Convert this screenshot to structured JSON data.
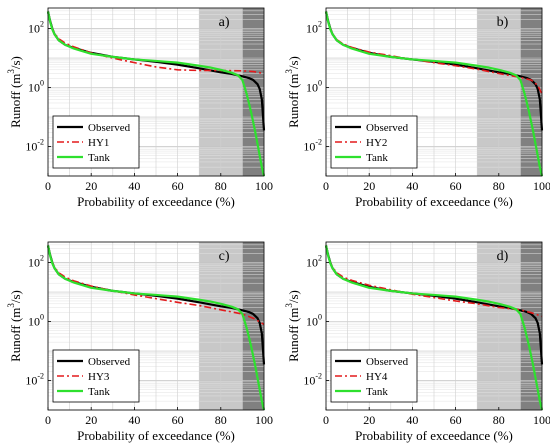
{
  "chart_data": [
    {
      "type": "line",
      "panel_label": "a)",
      "xlabel": "Probability of exceedance (%)",
      "ylabel": "Runoff (m3/s)",
      "ylabel_parts": {
        "pre": "Runoff (m",
        "sup": "3",
        "post": "/s)"
      },
      "xlim": [
        0,
        100
      ],
      "ylim": [
        0.001,
        500
      ],
      "yscale": "log",
      "xticks": [
        "0",
        "20",
        "40",
        "60",
        "80",
        "100"
      ],
      "yticks": [
        {
          "base": "10",
          "exp": "-2",
          "value": 0.01
        },
        {
          "base": "10",
          "exp": "0",
          "value": 1
        },
        {
          "base": "10",
          "exp": "2",
          "value": 100
        }
      ],
      "grid": true,
      "shaded_regions": [
        {
          "x": [
            70,
            90
          ],
          "color": "#c8c8c8"
        },
        {
          "x": [
            90,
            100
          ],
          "color": "#808080"
        }
      ],
      "legend_position": "bottom-left",
      "series": [
        {
          "name": "Observed",
          "color": "#000000",
          "dash": "solid",
          "x": [
            0,
            1,
            2,
            3,
            5,
            8,
            12,
            20,
            30,
            40,
            50,
            60,
            70,
            80,
            85,
            90,
            93,
            95,
            97,
            98,
            99,
            99.5,
            100
          ],
          "y": [
            380,
            180,
            100,
            65,
            40,
            28,
            22,
            15,
            11,
            9,
            7.5,
            6,
            4.5,
            3.3,
            2.9,
            2.4,
            2.1,
            1.8,
            1.3,
            0.9,
            0.4,
            0.12,
            0.035
          ]
        },
        {
          "name": "HY1",
          "color": "#e31a1c",
          "dash": "dashdot",
          "x": [
            0,
            1,
            2,
            3,
            5,
            8,
            12,
            20,
            30,
            40,
            50,
            60,
            70,
            80,
            90,
            95,
            100
          ],
          "y": [
            380,
            180,
            100,
            70,
            45,
            32,
            24,
            15,
            10,
            7,
            5,
            4,
            3.8,
            3.8,
            3.7,
            3.5,
            3.0
          ]
        },
        {
          "name": "Tank",
          "color": "#2ee02e",
          "dash": "solid",
          "x": [
            0,
            1,
            2,
            3,
            5,
            8,
            12,
            20,
            30,
            40,
            50,
            60,
            70,
            75,
            80,
            85,
            88,
            90,
            92,
            94,
            96,
            98,
            99,
            100
          ],
          "y": [
            380,
            170,
            95,
            65,
            40,
            28,
            21,
            14,
            11,
            9,
            8,
            7,
            5.5,
            4.8,
            4.0,
            3.2,
            2.6,
            1.8,
            0.6,
            0.15,
            0.03,
            0.005,
            0.002,
            0.001
          ]
        }
      ]
    },
    {
      "type": "line",
      "panel_label": "b)",
      "xlabel": "Probability of exceedance (%)",
      "ylabel": "Runoff (m3/s)",
      "ylabel_parts": {
        "pre": "Runoff (m",
        "sup": "3",
        "post": "/s)"
      },
      "xlim": [
        0,
        100
      ],
      "ylim": [
        0.001,
        500
      ],
      "yscale": "log",
      "xticks": [
        "0",
        "20",
        "40",
        "60",
        "80",
        "100"
      ],
      "yticks": [
        {
          "base": "10",
          "exp": "-2",
          "value": 0.01
        },
        {
          "base": "10",
          "exp": "0",
          "value": 1
        },
        {
          "base": "10",
          "exp": "2",
          "value": 100
        }
      ],
      "grid": true,
      "shaded_regions": [
        {
          "x": [
            70,
            90
          ],
          "color": "#c8c8c8"
        },
        {
          "x": [
            90,
            100
          ],
          "color": "#808080"
        }
      ],
      "legend_position": "bottom-left",
      "series": [
        {
          "name": "Observed",
          "color": "#000000",
          "dash": "solid",
          "x": [
            0,
            1,
            2,
            3,
            5,
            8,
            12,
            20,
            30,
            40,
            50,
            60,
            70,
            80,
            85,
            90,
            93,
            95,
            97,
            98,
            99,
            99.5,
            100
          ],
          "y": [
            380,
            180,
            100,
            65,
            40,
            28,
            22,
            15,
            11,
            9,
            7.5,
            6,
            4.5,
            3.3,
            2.9,
            2.4,
            2.1,
            1.8,
            1.3,
            0.9,
            0.4,
            0.12,
            0.035
          ]
        },
        {
          "name": "HY2",
          "color": "#e31a1c",
          "dash": "dashdot",
          "x": [
            0,
            1,
            2,
            3,
            5,
            8,
            12,
            20,
            30,
            40,
            50,
            60,
            70,
            80,
            90,
            95,
            98,
            100
          ],
          "y": [
            380,
            180,
            100,
            68,
            42,
            30,
            23,
            16,
            12,
            9,
            7,
            5.5,
            4.2,
            3.0,
            2.2,
            1.8,
            1.2,
            0.6
          ]
        },
        {
          "name": "Tank",
          "color": "#2ee02e",
          "dash": "solid",
          "x": [
            0,
            1,
            2,
            3,
            5,
            8,
            12,
            20,
            30,
            40,
            50,
            60,
            70,
            75,
            80,
            85,
            88,
            90,
            92,
            94,
            96,
            98,
            99,
            100
          ],
          "y": [
            380,
            170,
            95,
            65,
            40,
            28,
            21,
            14,
            11,
            9,
            8,
            7,
            5.5,
            4.8,
            4.0,
            3.2,
            2.6,
            1.8,
            0.6,
            0.15,
            0.03,
            0.005,
            0.002,
            0.001
          ]
        }
      ]
    },
    {
      "type": "line",
      "panel_label": "c)",
      "xlabel": "Probability of exceedance (%)",
      "ylabel": "Runoff (m3/s)",
      "ylabel_parts": {
        "pre": "Runoff (m",
        "sup": "3",
        "post": "/s)"
      },
      "xlim": [
        0,
        100
      ],
      "ylim": [
        0.001,
        500
      ],
      "yscale": "log",
      "xticks": [
        "0",
        "20",
        "40",
        "60",
        "80",
        "100"
      ],
      "yticks": [
        {
          "base": "10",
          "exp": "-2",
          "value": 0.01
        },
        {
          "base": "10",
          "exp": "0",
          "value": 1
        },
        {
          "base": "10",
          "exp": "2",
          "value": 100
        }
      ],
      "grid": true,
      "shaded_regions": [
        {
          "x": [
            70,
            90
          ],
          "color": "#c8c8c8"
        },
        {
          "x": [
            90,
            100
          ],
          "color": "#808080"
        }
      ],
      "legend_position": "bottom-left",
      "series": [
        {
          "name": "Observed",
          "color": "#000000",
          "dash": "solid",
          "x": [
            0,
            1,
            2,
            3,
            5,
            8,
            12,
            20,
            30,
            40,
            50,
            60,
            70,
            80,
            85,
            90,
            93,
            95,
            97,
            98,
            99,
            99.5,
            100
          ],
          "y": [
            380,
            180,
            100,
            65,
            40,
            28,
            22,
            15,
            11,
            9,
            7.5,
            6,
            4.5,
            3.3,
            2.9,
            2.4,
            2.1,
            1.8,
            1.3,
            0.9,
            0.4,
            0.12,
            0.035
          ]
        },
        {
          "name": "HY3",
          "color": "#e31a1c",
          "dash": "dashdot",
          "x": [
            0,
            1,
            2,
            3,
            5,
            8,
            12,
            20,
            30,
            40,
            50,
            60,
            70,
            80,
            90,
            95,
            100
          ],
          "y": [
            380,
            180,
            100,
            70,
            45,
            32,
            24,
            16,
            11,
            8,
            6,
            4.5,
            3.5,
            2.5,
            1.8,
            1.3,
            0.8
          ]
        },
        {
          "name": "Tank",
          "color": "#2ee02e",
          "dash": "solid",
          "x": [
            0,
            1,
            2,
            3,
            5,
            8,
            12,
            20,
            30,
            40,
            50,
            60,
            70,
            75,
            80,
            85,
            88,
            90,
            92,
            94,
            96,
            98,
            99,
            100
          ],
          "y": [
            380,
            170,
            95,
            65,
            40,
            28,
            21,
            14,
            11,
            9,
            8,
            7,
            5.5,
            4.8,
            4.0,
            3.2,
            2.6,
            1.8,
            0.6,
            0.15,
            0.03,
            0.005,
            0.002,
            0.001
          ]
        }
      ]
    },
    {
      "type": "line",
      "panel_label": "d)",
      "xlabel": "Probability of exceedance (%)",
      "ylabel": "Runoff (m3/s)",
      "ylabel_parts": {
        "pre": "Runoff (m",
        "sup": "3",
        "post": "/s)"
      },
      "xlim": [
        0,
        100
      ],
      "ylim": [
        0.001,
        500
      ],
      "yscale": "log",
      "xticks": [
        "0",
        "20",
        "40",
        "60",
        "80",
        "100"
      ],
      "yticks": [
        {
          "base": "10",
          "exp": "-2",
          "value": 0.01
        },
        {
          "base": "10",
          "exp": "0",
          "value": 1
        },
        {
          "base": "10",
          "exp": "2",
          "value": 100
        }
      ],
      "grid": true,
      "shaded_regions": [
        {
          "x": [
            70,
            90
          ],
          "color": "#c8c8c8"
        },
        {
          "x": [
            90,
            100
          ],
          "color": "#808080"
        }
      ],
      "legend_position": "bottom-left",
      "series": [
        {
          "name": "Observed",
          "color": "#000000",
          "dash": "solid",
          "x": [
            0,
            1,
            2,
            3,
            5,
            8,
            12,
            20,
            30,
            40,
            50,
            60,
            70,
            80,
            85,
            90,
            93,
            95,
            97,
            98,
            99,
            99.5,
            100
          ],
          "y": [
            380,
            180,
            100,
            65,
            40,
            28,
            22,
            15,
            11,
            9,
            7.5,
            6,
            4.5,
            3.3,
            2.9,
            2.4,
            2.1,
            1.8,
            1.3,
            0.9,
            0.4,
            0.12,
            0.035
          ]
        },
        {
          "name": "HY4",
          "color": "#e31a1c",
          "dash": "dashdot",
          "x": [
            0,
            1,
            2,
            3,
            5,
            8,
            12,
            20,
            30,
            40,
            50,
            60,
            70,
            80,
            90,
            95,
            100
          ],
          "y": [
            380,
            180,
            100,
            70,
            45,
            32,
            25,
            17,
            12,
            8.5,
            6.5,
            5,
            4,
            3.0,
            2.5,
            2.0,
            1.5
          ]
        },
        {
          "name": "Tank",
          "color": "#2ee02e",
          "dash": "solid",
          "x": [
            0,
            1,
            2,
            3,
            5,
            8,
            12,
            20,
            30,
            40,
            50,
            60,
            70,
            75,
            80,
            85,
            88,
            90,
            92,
            94,
            96,
            98,
            99,
            100
          ],
          "y": [
            380,
            170,
            95,
            65,
            40,
            28,
            21,
            14,
            11,
            9,
            8,
            7,
            5.5,
            4.8,
            4.0,
            3.2,
            2.6,
            1.8,
            0.6,
            0.15,
            0.03,
            0.005,
            0.002,
            0.001
          ]
        }
      ]
    }
  ]
}
